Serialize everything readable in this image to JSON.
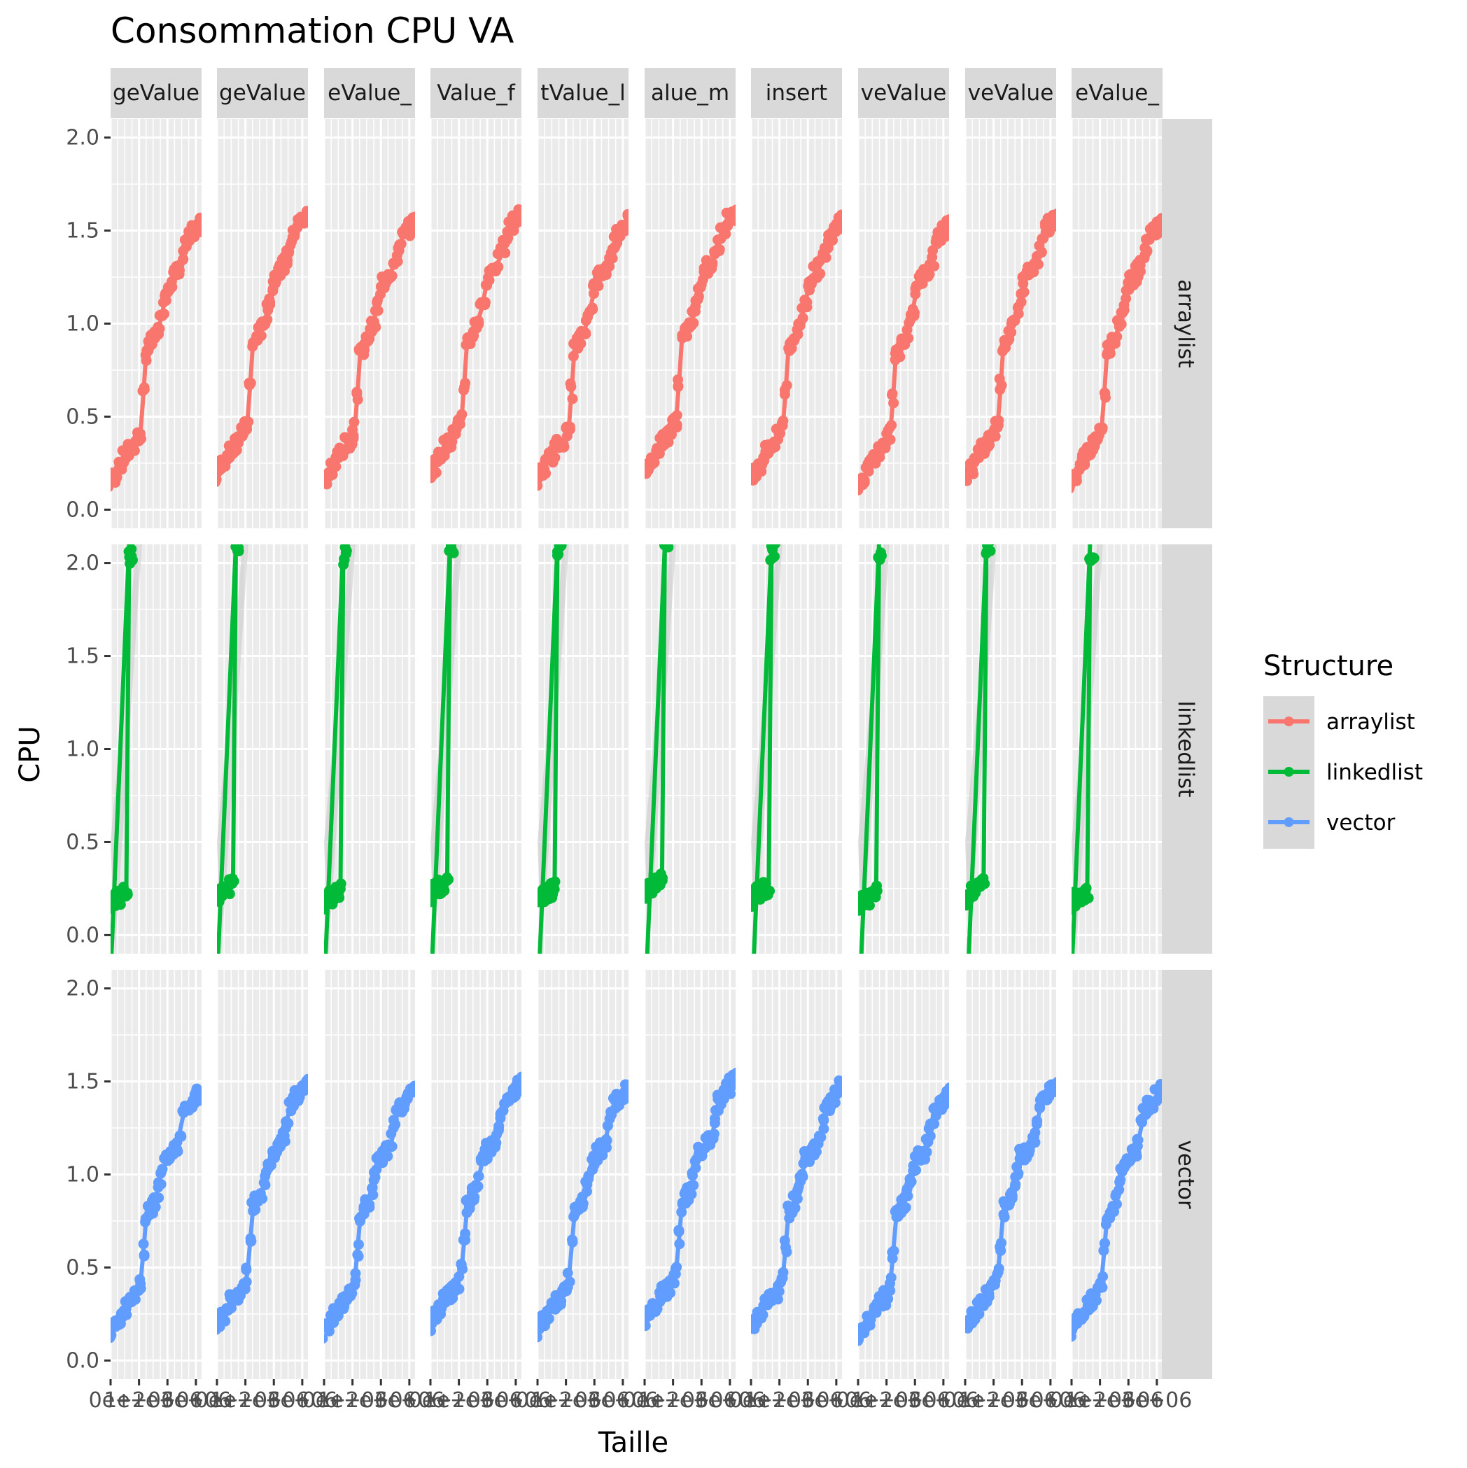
{
  "chart_data": {
    "type": "line",
    "title": "Consommation CPU VA",
    "xlabel": "Taille",
    "ylabel": "CPU",
    "xlim": [
      0,
      3200000
    ],
    "ylim": [
      -0.1,
      2.1
    ],
    "x_tick_values": [
      0,
      1000000,
      2000000,
      3000000
    ],
    "x_tick_labels_shown": [
      "0e+",
      "1e+06",
      "2e+06",
      "3e+06"
    ],
    "y_ticks": [
      "0.0",
      "0.5",
      "1.0",
      "1.5",
      "2.0"
    ],
    "y_tick_values": [
      0,
      0.5,
      1,
      1.5,
      2
    ],
    "columns": [
      "geValue",
      "geValue",
      "eValue_",
      "Value_f",
      "tValue_l",
      "alue_m",
      "insert",
      "veValue",
      "veValue",
      "eValue_"
    ],
    "rows": [
      "arraylist",
      "linkedlist",
      "vector"
    ],
    "legend": {
      "title": "Structure",
      "position": "right",
      "entries": [
        {
          "label": "arraylist",
          "color": "#F8766D"
        },
        {
          "label": "linkedlist",
          "color": "#00BA38"
        },
        {
          "label": "vector",
          "color": "#619CFF"
        }
      ]
    },
    "grid": true,
    "series": [
      {
        "name": "arraylist",
        "color": "#F8766D",
        "x": [
          0,
          100000,
          200000,
          300000,
          400000,
          500000,
          600000,
          700000,
          800000,
          900000,
          1000000,
          1100000,
          1200000,
          1300000,
          1400000,
          1500000,
          1600000,
          1700000,
          1800000,
          1900000,
          2000000,
          2100000,
          2200000,
          2300000,
          2400000,
          2500000,
          2600000,
          2700000,
          2800000,
          2900000,
          3000000,
          3100000,
          3200000
        ],
        "y": [
          0.18,
          0.2,
          0.22,
          0.25,
          0.28,
          0.31,
          0.33,
          0.35,
          0.37,
          0.39,
          0.42,
          0.45,
          0.65,
          0.88,
          0.9,
          0.93,
          0.96,
          1.0,
          1.05,
          1.12,
          1.2,
          1.25,
          1.27,
          1.29,
          1.31,
          1.34,
          1.39,
          1.45,
          1.49,
          1.52,
          1.54,
          1.55,
          1.56
        ]
      },
      {
        "name": "linkedlist",
        "color": "#00BA38",
        "x": [
          0,
          100000,
          200000,
          300000,
          400000,
          500000,
          600000,
          700000,
          800000
        ],
        "y": [
          0.19,
          0.21,
          0.22,
          0.23,
          0.24,
          0.25,
          0.26,
          2.06,
          2.07
        ]
      },
      {
        "name": "vector",
        "color": "#619CFF",
        "x": [
          0,
          100000,
          200000,
          300000,
          400000,
          500000,
          600000,
          700000,
          800000,
          900000,
          1000000,
          1100000,
          1200000,
          1300000,
          1400000,
          1500000,
          1600000,
          1700000,
          1800000,
          1900000,
          2000000,
          2100000,
          2200000,
          2300000,
          2400000,
          2500000,
          2600000,
          2700000,
          2800000,
          2900000,
          3000000,
          3100000,
          3200000
        ],
        "y": [
          0.18,
          0.2,
          0.22,
          0.24,
          0.27,
          0.3,
          0.32,
          0.34,
          0.35,
          0.37,
          0.4,
          0.45,
          0.62,
          0.8,
          0.83,
          0.86,
          0.88,
          0.95,
          1.02,
          1.08,
          1.1,
          1.12,
          1.14,
          1.16,
          1.2,
          1.28,
          1.35,
          1.38,
          1.4,
          1.42,
          1.44,
          1.46,
          1.47
        ]
      }
    ]
  }
}
